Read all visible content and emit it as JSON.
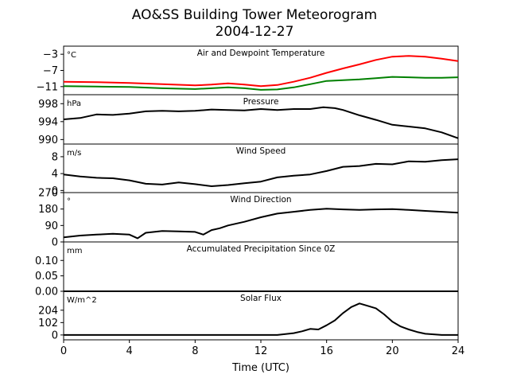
{
  "title_line1": "AO&SS Building Tower Meteorogram",
  "title_line2": "2004-12-27",
  "chart_data": {
    "type": "line",
    "xlabel": "Time (UTC)",
    "xlim": [
      0,
      24
    ],
    "xticks": [
      0,
      4,
      8,
      12,
      16,
      20,
      24
    ],
    "xtick_labels": [
      "0",
      "4",
      "8",
      "12",
      "16",
      "20",
      "24"
    ],
    "panels": [
      {
        "title": "Air and Dewpoint Temperature",
        "unit": "°C",
        "ylim": [
          -13,
          -1
        ],
        "yticks": [
          -3,
          -7,
          -11
        ],
        "ytick_labels": [
          "−3",
          "−7",
          "−11"
        ],
        "series": [
          {
            "color": "#ff0000",
            "x": [
              0,
              2,
              4,
              6,
              8,
              9,
              10,
              11,
              12,
              13,
              14,
              15,
              16,
              17,
              18,
              19,
              20,
              21,
              22,
              23,
              24
            ],
            "y": [
              -9.8,
              -9.9,
              -10.1,
              -10.4,
              -10.7,
              -10.5,
              -10.2,
              -10.5,
              -10.9,
              -10.6,
              -9.8,
              -8.8,
              -7.6,
              -6.5,
              -5.5,
              -4.4,
              -3.6,
              -3.4,
              -3.6,
              -4.1,
              -4.7
            ]
          },
          {
            "color": "#008000",
            "x": [
              0,
              2,
              4,
              6,
              8,
              9,
              10,
              11,
              12,
              13,
              14,
              15,
              16,
              17,
              18,
              19,
              20,
              21,
              22,
              23,
              24
            ],
            "y": [
              -10.9,
              -11.0,
              -11.1,
              -11.4,
              -11.6,
              -11.4,
              -11.2,
              -11.4,
              -11.8,
              -11.7,
              -11.2,
              -10.4,
              -9.6,
              -9.4,
              -9.2,
              -8.9,
              -8.6,
              -8.7,
              -8.8,
              -8.8,
              -8.7
            ]
          }
        ]
      },
      {
        "title": "Pressure",
        "unit": "hPa",
        "ylim": [
          989,
          1000
        ],
        "yticks": [
          998,
          994,
          990
        ],
        "ytick_labels": [
          "998",
          "994",
          "990"
        ],
        "series": [
          {
            "color": "#000000",
            "x": [
              0,
              1,
              2,
              3,
              4,
              5,
              6,
              7,
              8,
              9,
              10,
              11,
              12,
              13,
              14,
              15,
              15.8,
              16.5,
              17,
              18,
              19,
              20,
              21,
              22,
              23,
              24
            ],
            "y": [
              994.5,
              994.8,
              995.6,
              995.5,
              995.8,
              996.3,
              996.4,
              996.3,
              996.4,
              996.7,
              996.6,
              996.5,
              996.8,
              996.6,
              996.8,
              996.8,
              997.2,
              997.0,
              996.6,
              995.4,
              994.4,
              993.3,
              992.9,
              992.5,
              991.6,
              990.3
            ]
          }
        ]
      },
      {
        "title": "Wind Speed",
        "unit": "m/s",
        "ylim": [
          -0.5,
          11
        ],
        "yticks": [
          8,
          4,
          0
        ],
        "ytick_labels": [
          "8",
          "4",
          "0"
        ],
        "series": [
          {
            "color": "#000000",
            "x": [
              0,
              1,
              2,
              3,
              4,
              5,
              6,
              7,
              8,
              9,
              10,
              11,
              12,
              13,
              14,
              15,
              16,
              17,
              18,
              19,
              20,
              21,
              22,
              23,
              24
            ],
            "y": [
              3.8,
              3.3,
              3.0,
              2.9,
              2.4,
              1.6,
              1.4,
              1.9,
              1.5,
              1.0,
              1.3,
              1.7,
              2.1,
              3.1,
              3.5,
              3.8,
              4.6,
              5.6,
              5.8,
              6.3,
              6.2,
              6.9,
              6.8,
              7.2,
              7.4
            ]
          }
        ]
      },
      {
        "title": "Wind Direction",
        "unit": "°",
        "ylim": [
          0,
          270
        ],
        "yticks": [
          270,
          180,
          90,
          0
        ],
        "ytick_labels": [
          "270",
          "180",
          "90",
          "0"
        ],
        "series": [
          {
            "color": "#000000",
            "x": [
              0,
              1,
              2,
              3,
              4,
              4.5,
              5,
              6,
              7,
              8,
              8.5,
              9,
              9.5,
              10,
              11,
              12,
              13,
              14,
              15,
              16,
              17,
              18,
              19,
              20,
              21,
              22,
              23,
              24
            ],
            "y": [
              25,
              35,
              40,
              45,
              40,
              20,
              50,
              60,
              58,
              55,
              40,
              65,
              75,
              90,
              110,
              135,
              155,
              165,
              175,
              182,
              178,
              175,
              178,
              180,
              175,
              170,
              165,
              160
            ]
          }
        ]
      },
      {
        "title": "Accumulated Precipitation Since 0Z",
        "unit": "mm",
        "ylim": [
          0,
          0.16
        ],
        "yticks": [
          0.1,
          0.05,
          0.0
        ],
        "ytick_labels": [
          "0.10",
          "0.05",
          "0.00"
        ],
        "series": [
          {
            "color": "#000000",
            "x": [
              0,
              24
            ],
            "y": [
              0.0,
              0.0
            ]
          }
        ]
      },
      {
        "title": "Solar Flux",
        "unit": "W/m^2",
        "ylim": [
          -40,
          360
        ],
        "yticks": [
          204,
          102,
          0
        ],
        "ytick_labels": [
          "204",
          "102",
          "0"
        ],
        "series": [
          {
            "color": "#000000",
            "x": [
              0,
              12,
              13,
              14,
              14.5,
              15,
              15.5,
              16,
              16.5,
              17,
              17.5,
              18,
              18.5,
              19,
              19.5,
              20,
              20.5,
              21,
              21.5,
              22,
              23,
              24
            ],
            "y": [
              0,
              0,
              0,
              15,
              30,
              50,
              45,
              80,
              120,
              180,
              230,
              260,
              240,
              220,
              170,
              110,
              70,
              45,
              25,
              10,
              0,
              0
            ]
          }
        ]
      }
    ]
  }
}
